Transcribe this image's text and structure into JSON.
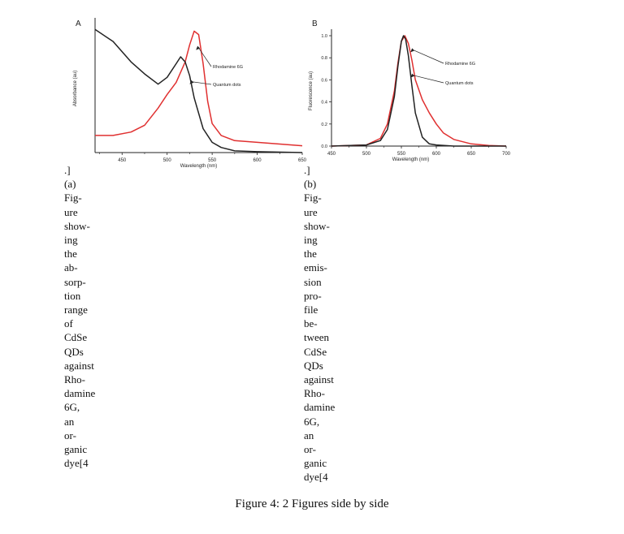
{
  "figure_caption": "Figure 4: 2 Figures side by side",
  "panels": [
    {
      "bracket": ".]",
      "sub": "(a)",
      "caption_lines": [
        "Fig-",
        "ure",
        "show-",
        "ing",
        "the",
        "ab-",
        "sorp-",
        "tion",
        "range",
        "of",
        "CdSe",
        "QDs",
        "against",
        "Rho-",
        "damine",
        "6G,",
        "an",
        "or-",
        "ganic",
        "dye[4"
      ]
    },
    {
      "bracket": ".]",
      "sub": "(b)",
      "caption_lines": [
        "Fig-",
        "ure",
        "show-",
        "ing",
        "the",
        "emis-",
        "sion",
        "pro-",
        "file",
        "be-",
        "tween",
        "CdSe",
        "QDs",
        "against",
        "Rho-",
        "damine",
        "6G,",
        "an",
        "or-",
        "ganic",
        "dye[4"
      ]
    }
  ],
  "chart_data": [
    {
      "type": "line",
      "panel_letter": "A",
      "xlabel": "Wavelength (nm)",
      "ylabel": "Absorbance (au)",
      "xlim": [
        420,
        650
      ],
      "x_ticks": [
        450,
        500,
        550,
        600,
        650
      ],
      "y_ticks": [],
      "series": [
        {
          "name": "Rhodamine 6G",
          "color": "#e03030",
          "x": [
            420,
            440,
            460,
            475,
            490,
            500,
            510,
            520,
            525,
            530,
            535,
            540,
            545,
            550,
            560,
            575,
            600,
            625,
            650
          ],
          "y": [
            0.1,
            0.1,
            0.12,
            0.16,
            0.26,
            0.34,
            0.41,
            0.53,
            0.63,
            0.71,
            0.69,
            0.52,
            0.3,
            0.17,
            0.1,
            0.07,
            0.06,
            0.05,
            0.04
          ]
        },
        {
          "name": "Quantum dots",
          "color": "#222222",
          "x": [
            420,
            440,
            460,
            475,
            490,
            500,
            510,
            515,
            520,
            525,
            530,
            540,
            550,
            560,
            575,
            600,
            650
          ],
          "y": [
            0.72,
            0.65,
            0.53,
            0.46,
            0.4,
            0.44,
            0.52,
            0.56,
            0.53,
            0.45,
            0.32,
            0.14,
            0.06,
            0.03,
            0.01,
            0.005,
            0.0
          ]
        }
      ]
    },
    {
      "type": "line",
      "panel_letter": "B",
      "xlabel": "Wavelength (nm)",
      "ylabel": "Fluorescence (au)",
      "xlim": [
        450,
        700
      ],
      "ylim": [
        0,
        1.0
      ],
      "x_ticks": [
        450,
        500,
        550,
        600,
        650,
        700
      ],
      "y_ticks": [
        0.0,
        0.2,
        0.4,
        0.6,
        0.8,
        1.0
      ],
      "series": [
        {
          "name": "Rhodamine 6G",
          "color": "#e03030",
          "x": [
            450,
            500,
            520,
            530,
            540,
            545,
            550,
            555,
            560,
            565,
            570,
            580,
            590,
            600,
            610,
            625,
            650,
            675,
            700
          ],
          "y": [
            0,
            0.01,
            0.07,
            0.2,
            0.5,
            0.75,
            0.95,
            1.0,
            0.93,
            0.78,
            0.6,
            0.42,
            0.3,
            0.2,
            0.12,
            0.06,
            0.02,
            0.005,
            0
          ]
        },
        {
          "name": "Quantum dots",
          "color": "#222222",
          "x": [
            450,
            500,
            520,
            530,
            540,
            545,
            550,
            553,
            556,
            560,
            565,
            570,
            580,
            590,
            600,
            625,
            650,
            700
          ],
          "y": [
            0,
            0.01,
            0.05,
            0.15,
            0.45,
            0.72,
            0.95,
            1.0,
            0.97,
            0.82,
            0.55,
            0.3,
            0.08,
            0.02,
            0.01,
            0,
            0,
            0
          ]
        }
      ]
    }
  ]
}
